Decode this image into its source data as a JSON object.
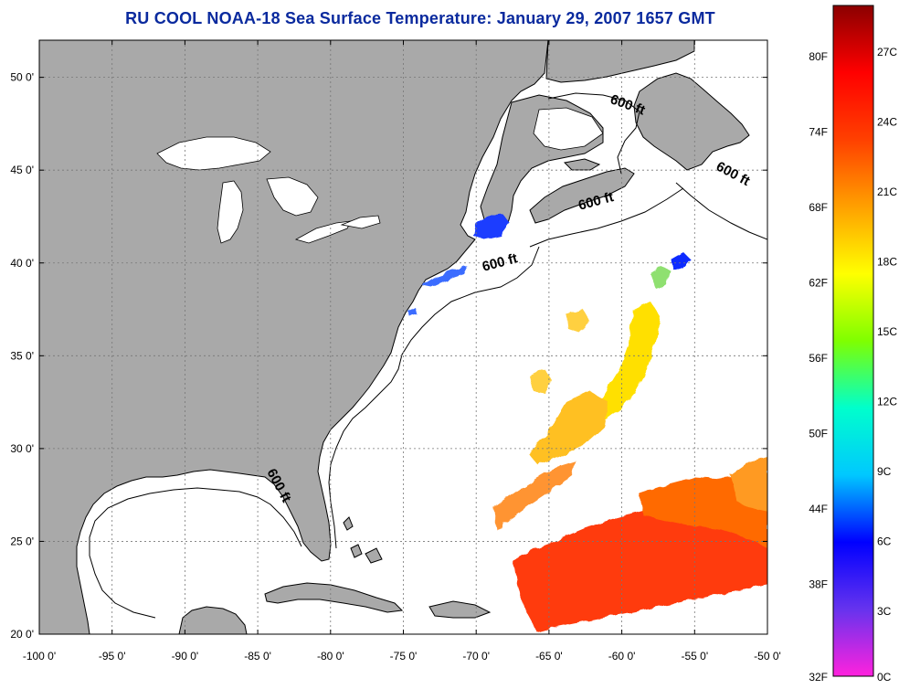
{
  "title": "RU COOL  NOAA-18  Sea Surface Temperature:  January 29, 2007 1657 GMT",
  "colors": {
    "land": "#a9a9a9",
    "ocean": "#ffffff",
    "coast": "#000000",
    "title": "#0a2a9e"
  },
  "map": {
    "lon_range": [
      -100,
      -50
    ],
    "lat_range": [
      20,
      52
    ],
    "x_ticks": [
      {
        "value": -100,
        "label": "-100 0'"
      },
      {
        "value": -95,
        "label": "-95 0'"
      },
      {
        "value": -90,
        "label": "-90 0'"
      },
      {
        "value": -85,
        "label": "-85 0'"
      },
      {
        "value": -80,
        "label": "-80 0'"
      },
      {
        "value": -75,
        "label": "-75 0'"
      },
      {
        "value": -70,
        "label": "-70 0'"
      },
      {
        "value": -65,
        "label": "-65 0'"
      },
      {
        "value": -60,
        "label": "-60 0'"
      },
      {
        "value": -55,
        "label": "-55 0'"
      },
      {
        "value": -50,
        "label": "-50 0'"
      }
    ],
    "y_ticks": [
      {
        "value": 50,
        "label": "50 0'"
      },
      {
        "value": 45,
        "label": "45 0'"
      },
      {
        "value": 40,
        "label": "40 0'"
      },
      {
        "value": 35,
        "label": "35 0'"
      },
      {
        "value": 30,
        "label": "30 0'"
      },
      {
        "value": 25,
        "label": "25 0'"
      },
      {
        "value": 20,
        "label": "20 0'"
      }
    ],
    "contour_labels": [
      {
        "text": "600 ft",
        "lon": -59.7,
        "lat": 48.3,
        "angle": 20
      },
      {
        "text": "600 ft",
        "lon": -52.5,
        "lat": 44.6,
        "angle": 28
      },
      {
        "text": "600 ft",
        "lon": -61.7,
        "lat": 43.1,
        "angle": -15
      },
      {
        "text": "600 ft",
        "lon": -68.3,
        "lat": 39.8,
        "angle": -15
      },
      {
        "text": "600 ft",
        "lon": -83.8,
        "lat": 27.9,
        "angle": 62
      }
    ]
  },
  "colorbar": {
    "range_c": [
      0,
      29
    ],
    "stops": [
      "#ff22dd",
      "#6633ee",
      "#0000ff",
      "#00c8ff",
      "#00ffcc",
      "#7fff00",
      "#ffff00",
      "#ffa000",
      "#ff4000",
      "#ff0000",
      "#8b0000"
    ],
    "f_labels": [
      "80F",
      "74F",
      "68F",
      "62F",
      "56F",
      "50F",
      "44F",
      "38F",
      "32F"
    ],
    "c_labels": [
      "27C",
      "24C",
      "21C",
      "18C",
      "15C",
      "12C",
      "9C",
      "6C",
      "3C",
      "0C"
    ]
  }
}
